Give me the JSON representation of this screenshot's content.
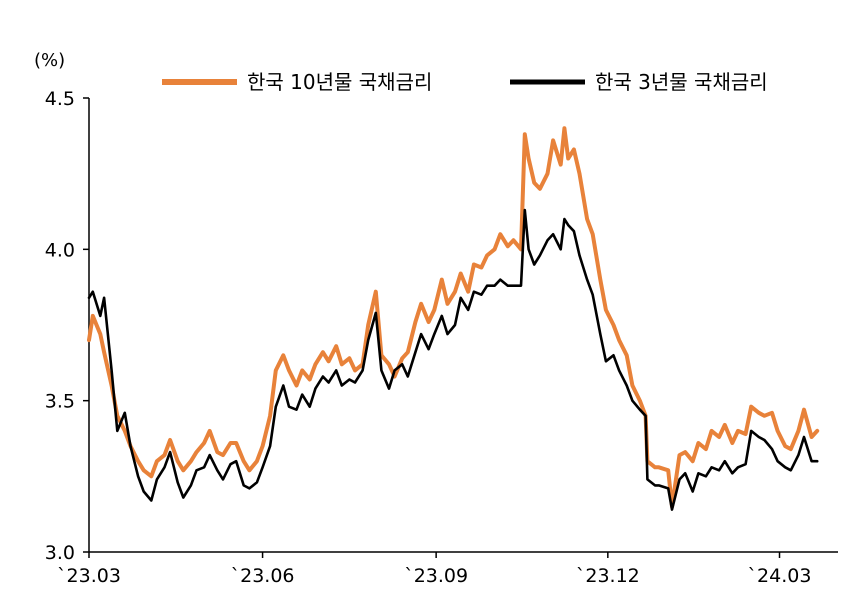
{
  "chart_data": {
    "type": "line",
    "unit_label": "(%)",
    "ylim": [
      3.0,
      4.5
    ],
    "yticks": [
      "3.0",
      "3.5",
      "4.0",
      "4.5"
    ],
    "xticks": [
      "`23.03",
      "`23.06",
      "`23.09",
      "`23.12",
      "`24.03"
    ],
    "xlim": [
      "2023-03",
      "2024-04"
    ],
    "grid": false,
    "legend_position": "top",
    "series": [
      {
        "name": "한국 10년물 국채금리",
        "color": "#E8823A",
        "points": [
          [
            "2023-03-01",
            3.7
          ],
          [
            "2023-03-03",
            3.78
          ],
          [
            "2023-03-07",
            3.72
          ],
          [
            "2023-03-09",
            3.66
          ],
          [
            "2023-03-13",
            3.55
          ],
          [
            "2023-03-16",
            3.45
          ],
          [
            "2023-03-20",
            3.4
          ],
          [
            "2023-03-23",
            3.35
          ],
          [
            "2023-03-27",
            3.3
          ],
          [
            "2023-03-30",
            3.27
          ],
          [
            "2023-04-03",
            3.25
          ],
          [
            "2023-04-06",
            3.3
          ],
          [
            "2023-04-10",
            3.32
          ],
          [
            "2023-04-13",
            3.37
          ],
          [
            "2023-04-17",
            3.3
          ],
          [
            "2023-04-20",
            3.27
          ],
          [
            "2023-04-24",
            3.3
          ],
          [
            "2023-04-27",
            3.33
          ],
          [
            "2023-05-01",
            3.36
          ],
          [
            "2023-05-04",
            3.4
          ],
          [
            "2023-05-08",
            3.33
          ],
          [
            "2023-05-11",
            3.32
          ],
          [
            "2023-05-15",
            3.36
          ],
          [
            "2023-05-18",
            3.36
          ],
          [
            "2023-05-22",
            3.3
          ],
          [
            "2023-05-25",
            3.27
          ],
          [
            "2023-05-29",
            3.3
          ],
          [
            "2023-06-01",
            3.35
          ],
          [
            "2023-06-05",
            3.45
          ],
          [
            "2023-06-08",
            3.6
          ],
          [
            "2023-06-12",
            3.65
          ],
          [
            "2023-06-15",
            3.6
          ],
          [
            "2023-06-19",
            3.55
          ],
          [
            "2023-06-22",
            3.6
          ],
          [
            "2023-06-26",
            3.57
          ],
          [
            "2023-06-29",
            3.62
          ],
          [
            "2023-07-03",
            3.66
          ],
          [
            "2023-07-06",
            3.63
          ],
          [
            "2023-07-10",
            3.68
          ],
          [
            "2023-07-13",
            3.62
          ],
          [
            "2023-07-17",
            3.64
          ],
          [
            "2023-07-20",
            3.6
          ],
          [
            "2023-07-24",
            3.62
          ],
          [
            "2023-07-27",
            3.75
          ],
          [
            "2023-07-31",
            3.86
          ],
          [
            "2023-08-03",
            3.65
          ],
          [
            "2023-08-07",
            3.62
          ],
          [
            "2023-08-10",
            3.58
          ],
          [
            "2023-08-14",
            3.64
          ],
          [
            "2023-08-17",
            3.66
          ],
          [
            "2023-08-21",
            3.76
          ],
          [
            "2023-08-24",
            3.82
          ],
          [
            "2023-08-28",
            3.76
          ],
          [
            "2023-08-31",
            3.8
          ],
          [
            "2023-09-04",
            3.9
          ],
          [
            "2023-09-07",
            3.82
          ],
          [
            "2023-09-11",
            3.86
          ],
          [
            "2023-09-14",
            3.92
          ],
          [
            "2023-09-18",
            3.86
          ],
          [
            "2023-09-21",
            3.95
          ],
          [
            "2023-09-25",
            3.94
          ],
          [
            "2023-09-28",
            3.98
          ],
          [
            "2023-10-02",
            4.0
          ],
          [
            "2023-10-05",
            4.05
          ],
          [
            "2023-10-09",
            4.01
          ],
          [
            "2023-10-12",
            4.03
          ],
          [
            "2023-10-16",
            4.0
          ],
          [
            "2023-10-18",
            4.38
          ],
          [
            "2023-10-20",
            4.3
          ],
          [
            "2023-10-23",
            4.22
          ],
          [
            "2023-10-26",
            4.2
          ],
          [
            "2023-10-30",
            4.25
          ],
          [
            "2023-11-02",
            4.36
          ],
          [
            "2023-11-06",
            4.28
          ],
          [
            "2023-11-08",
            4.4
          ],
          [
            "2023-11-10",
            4.3
          ],
          [
            "2023-11-13",
            4.33
          ],
          [
            "2023-11-16",
            4.25
          ],
          [
            "2023-11-20",
            4.1
          ],
          [
            "2023-11-23",
            4.05
          ],
          [
            "2023-11-27",
            3.9
          ],
          [
            "2023-11-30",
            3.8
          ],
          [
            "2023-12-04",
            3.75
          ],
          [
            "2023-12-07",
            3.7
          ],
          [
            "2023-12-11",
            3.65
          ],
          [
            "2023-12-14",
            3.55
          ],
          [
            "2023-12-18",
            3.5
          ],
          [
            "2023-12-21",
            3.45
          ],
          [
            "2023-12-22",
            3.3
          ],
          [
            "2023-12-26",
            3.28
          ],
          [
            "2023-12-28",
            3.28
          ],
          [
            "2024-01-02",
            3.27
          ],
          [
            "2024-01-04",
            3.15
          ],
          [
            "2024-01-08",
            3.32
          ],
          [
            "2024-01-11",
            3.33
          ],
          [
            "2024-01-15",
            3.3
          ],
          [
            "2024-01-18",
            3.36
          ],
          [
            "2024-01-22",
            3.34
          ],
          [
            "2024-01-25",
            3.4
          ],
          [
            "2024-01-29",
            3.38
          ],
          [
            "2024-02-01",
            3.42
          ],
          [
            "2024-02-05",
            3.36
          ],
          [
            "2024-02-08",
            3.4
          ],
          [
            "2024-02-12",
            3.39
          ],
          [
            "2024-02-15",
            3.48
          ],
          [
            "2024-02-19",
            3.46
          ],
          [
            "2024-02-22",
            3.45
          ],
          [
            "2024-02-26",
            3.46
          ],
          [
            "2024-02-29",
            3.4
          ],
          [
            "2024-03-04",
            3.35
          ],
          [
            "2024-03-07",
            3.34
          ],
          [
            "2024-03-11",
            3.4
          ],
          [
            "2024-03-14",
            3.47
          ],
          [
            "2024-03-18",
            3.38
          ],
          [
            "2024-03-21",
            3.4
          ]
        ]
      },
      {
        "name": "한국 3년물 국채금리",
        "color": "#000000",
        "points": [
          [
            "2023-03-01",
            3.84
          ],
          [
            "2023-03-03",
            3.86
          ],
          [
            "2023-03-07",
            3.78
          ],
          [
            "2023-03-09",
            3.84
          ],
          [
            "2023-03-13",
            3.6
          ],
          [
            "2023-03-16",
            3.4
          ],
          [
            "2023-03-20",
            3.46
          ],
          [
            "2023-03-23",
            3.35
          ],
          [
            "2023-03-27",
            3.25
          ],
          [
            "2023-03-30",
            3.2
          ],
          [
            "2023-04-03",
            3.17
          ],
          [
            "2023-04-06",
            3.24
          ],
          [
            "2023-04-10",
            3.28
          ],
          [
            "2023-04-13",
            3.33
          ],
          [
            "2023-04-17",
            3.23
          ],
          [
            "2023-04-20",
            3.18
          ],
          [
            "2023-04-24",
            3.22
          ],
          [
            "2023-04-27",
            3.27
          ],
          [
            "2023-05-01",
            3.28
          ],
          [
            "2023-05-04",
            3.32
          ],
          [
            "2023-05-08",
            3.27
          ],
          [
            "2023-05-11",
            3.24
          ],
          [
            "2023-05-15",
            3.29
          ],
          [
            "2023-05-18",
            3.3
          ],
          [
            "2023-05-22",
            3.22
          ],
          [
            "2023-05-25",
            3.21
          ],
          [
            "2023-05-29",
            3.23
          ],
          [
            "2023-06-01",
            3.28
          ],
          [
            "2023-06-05",
            3.35
          ],
          [
            "2023-06-08",
            3.48
          ],
          [
            "2023-06-12",
            3.55
          ],
          [
            "2023-06-15",
            3.48
          ],
          [
            "2023-06-19",
            3.47
          ],
          [
            "2023-06-22",
            3.52
          ],
          [
            "2023-06-26",
            3.48
          ],
          [
            "2023-06-29",
            3.54
          ],
          [
            "2023-07-03",
            3.58
          ],
          [
            "2023-07-06",
            3.56
          ],
          [
            "2023-07-10",
            3.6
          ],
          [
            "2023-07-13",
            3.55
          ],
          [
            "2023-07-17",
            3.57
          ],
          [
            "2023-07-20",
            3.56
          ],
          [
            "2023-07-24",
            3.6
          ],
          [
            "2023-07-27",
            3.7
          ],
          [
            "2023-07-31",
            3.79
          ],
          [
            "2023-08-03",
            3.6
          ],
          [
            "2023-08-07",
            3.54
          ],
          [
            "2023-08-10",
            3.6
          ],
          [
            "2023-08-14",
            3.62
          ],
          [
            "2023-08-17",
            3.58
          ],
          [
            "2023-08-21",
            3.66
          ],
          [
            "2023-08-24",
            3.72
          ],
          [
            "2023-08-28",
            3.67
          ],
          [
            "2023-08-31",
            3.72
          ],
          [
            "2023-09-04",
            3.78
          ],
          [
            "2023-09-07",
            3.72
          ],
          [
            "2023-09-11",
            3.75
          ],
          [
            "2023-09-14",
            3.84
          ],
          [
            "2023-09-18",
            3.8
          ],
          [
            "2023-09-21",
            3.86
          ],
          [
            "2023-09-25",
            3.85
          ],
          [
            "2023-09-28",
            3.88
          ],
          [
            "2023-10-02",
            3.88
          ],
          [
            "2023-10-05",
            3.9
          ],
          [
            "2023-10-09",
            3.88
          ],
          [
            "2023-10-12",
            3.88
          ],
          [
            "2023-10-16",
            3.88
          ],
          [
            "2023-10-18",
            4.13
          ],
          [
            "2023-10-20",
            4.0
          ],
          [
            "2023-10-23",
            3.95
          ],
          [
            "2023-10-26",
            3.98
          ],
          [
            "2023-10-30",
            4.03
          ],
          [
            "2023-11-02",
            4.05
          ],
          [
            "2023-11-06",
            4.0
          ],
          [
            "2023-11-08",
            4.1
          ],
          [
            "2023-11-10",
            4.08
          ],
          [
            "2023-11-13",
            4.06
          ],
          [
            "2023-11-16",
            3.98
          ],
          [
            "2023-11-20",
            3.9
          ],
          [
            "2023-11-23",
            3.85
          ],
          [
            "2023-11-27",
            3.72
          ],
          [
            "2023-11-30",
            3.63
          ],
          [
            "2023-12-04",
            3.65
          ],
          [
            "2023-12-07",
            3.6
          ],
          [
            "2023-12-11",
            3.55
          ],
          [
            "2023-12-14",
            3.5
          ],
          [
            "2023-12-18",
            3.47
          ],
          [
            "2023-12-21",
            3.45
          ],
          [
            "2023-12-22",
            3.24
          ],
          [
            "2023-12-26",
            3.22
          ],
          [
            "2023-12-28",
            3.22
          ],
          [
            "2024-01-02",
            3.21
          ],
          [
            "2024-01-04",
            3.14
          ],
          [
            "2024-01-08",
            3.24
          ],
          [
            "2024-01-11",
            3.26
          ],
          [
            "2024-01-15",
            3.2
          ],
          [
            "2024-01-18",
            3.26
          ],
          [
            "2024-01-22",
            3.25
          ],
          [
            "2024-01-25",
            3.28
          ],
          [
            "2024-01-29",
            3.27
          ],
          [
            "2024-02-01",
            3.3
          ],
          [
            "2024-02-05",
            3.26
          ],
          [
            "2024-02-08",
            3.28
          ],
          [
            "2024-02-12",
            3.29
          ],
          [
            "2024-02-15",
            3.4
          ],
          [
            "2024-02-19",
            3.38
          ],
          [
            "2024-02-22",
            3.37
          ],
          [
            "2024-02-26",
            3.34
          ],
          [
            "2024-02-29",
            3.3
          ],
          [
            "2024-03-04",
            3.28
          ],
          [
            "2024-03-07",
            3.27
          ],
          [
            "2024-03-11",
            3.32
          ],
          [
            "2024-03-14",
            3.38
          ],
          [
            "2024-03-18",
            3.3
          ],
          [
            "2024-03-21",
            3.3
          ]
        ]
      }
    ]
  }
}
